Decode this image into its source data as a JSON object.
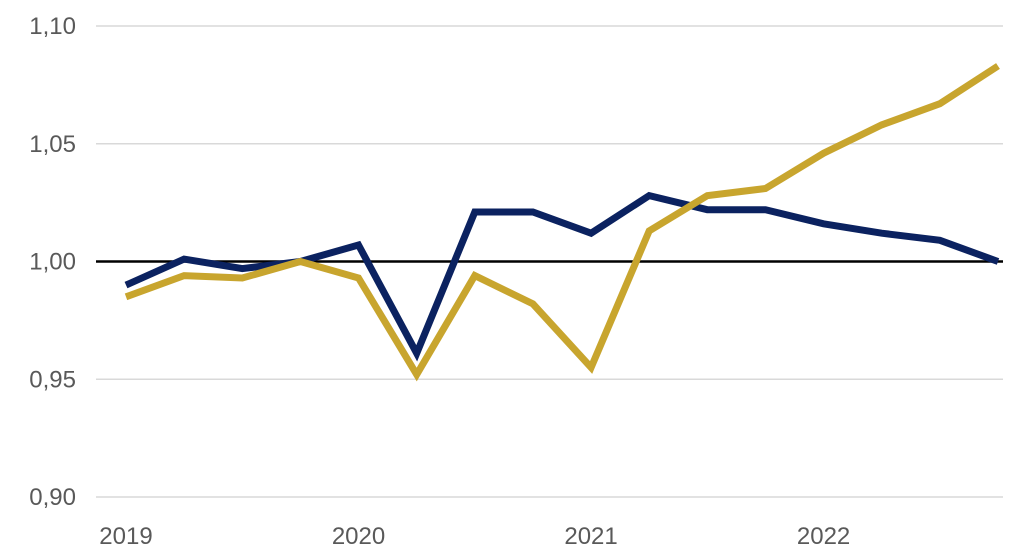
{
  "chart_data": {
    "type": "line",
    "title": "",
    "xlabel": "",
    "ylabel": "",
    "ylim": [
      0.9,
      1.1
    ],
    "y_ticks": [
      "0,90",
      "0,95",
      "1,00",
      "1,05",
      "1,10"
    ],
    "y_tick_values": [
      0.9,
      0.95,
      1.0,
      1.05,
      1.1
    ],
    "x_tick_labels": [
      "2019",
      "2020",
      "2021",
      "2022"
    ],
    "x": [
      "2019Q1",
      "2019Q2",
      "2019Q3",
      "2019Q4",
      "2020Q1",
      "2020Q2",
      "2020Q3",
      "2020Q4",
      "2021Q1",
      "2021Q2",
      "2021Q3",
      "2021Q4",
      "2022Q1",
      "2022Q2",
      "2022Q3",
      "2022Q4"
    ],
    "grid": true,
    "reference_line": {
      "value": 1.0,
      "color": "#000000"
    },
    "legend": "none",
    "series": [
      {
        "color": "#0b2260",
        "values": [
          0.99,
          1.001,
          0.997,
          1.0,
          1.007,
          0.961,
          1.021,
          1.021,
          1.012,
          1.028,
          1.022,
          1.022,
          1.016,
          1.012,
          1.009,
          1.0
        ]
      },
      {
        "color": "#c8a52e",
        "values": [
          0.985,
          0.994,
          0.993,
          1.0,
          0.993,
          0.952,
          0.994,
          0.982,
          0.955,
          1.013,
          1.028,
          1.031,
          1.046,
          1.058,
          1.067,
          1.083
        ]
      }
    ]
  }
}
